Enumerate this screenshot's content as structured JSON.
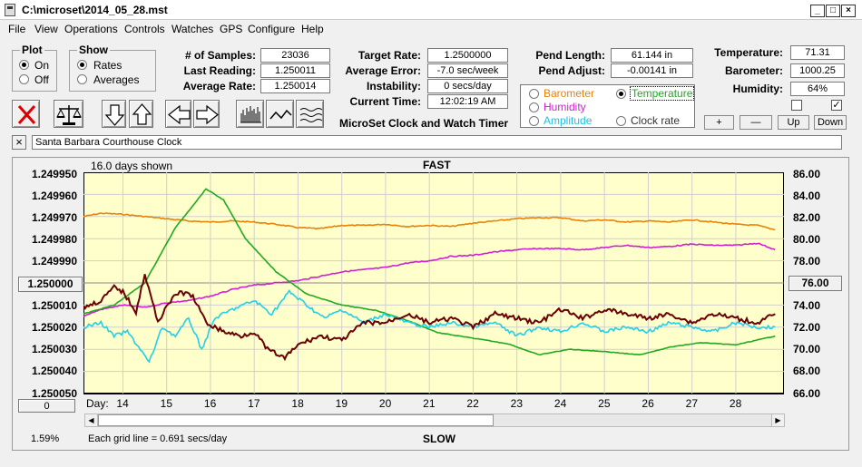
{
  "window": {
    "title": "C:\\microset\\2014_05_28.mst"
  },
  "menu": [
    "File",
    "View",
    "Operations",
    "Controls",
    "Watches",
    "GPS",
    "Configure",
    "Help"
  ],
  "plot_group": {
    "title": "Plot",
    "on": "On",
    "off": "Off",
    "selected": "On"
  },
  "show_group": {
    "title": "Show",
    "rates": "Rates",
    "averages": "Averages",
    "selected": "Rates"
  },
  "stats": {
    "samples_label": "# of Samples:",
    "samples": "23036",
    "last_label": "Last Reading:",
    "last": "1.250011",
    "avg_label": "Average Rate:",
    "avg": "1.250014"
  },
  "targets": {
    "target_label": "Target Rate:",
    "target": "1.2500000",
    "avgerr_label": "Average Error:",
    "avgerr": "-7.0 sec/week",
    "instab_label": "Instability:",
    "instab": "0 secs/day",
    "time_label": "Current Time:",
    "time": "12:02:19 AM"
  },
  "app_caption": "MicroSet Clock and Watch Timer",
  "pend": {
    "length_label": "Pend Length:",
    "length": "61.144 in",
    "adjust_label": "Pend Adjust:",
    "adjust": "-0.00141 in"
  },
  "env": {
    "temp_label": "Temperature:",
    "temp": "71.31",
    "baro_label": "Barometer:",
    "baro": "1000.25",
    "hum_label": "Humidity:",
    "hum": "64%"
  },
  "legend": {
    "barometer": "Barometer",
    "temperature": "Temperature",
    "humidity": "Humidity",
    "amplitude": "Amplitude",
    "clockrate": "Clock rate",
    "selected": "Temperature"
  },
  "scale_buttons": {
    "plus": "+",
    "minus": "—",
    "up": "Up",
    "down": "Down"
  },
  "clock_name": "Santa Barbara Courthouse Clock",
  "chart": {
    "days_shown": "16.0 days shown",
    "top_label": "FAST",
    "bottom_label": "SLOW",
    "center_left": "1.250000",
    "center_right": "76.00",
    "offset_value": "0",
    "percent": "1.59%",
    "grid_note": "Each grid line = 0.691 secs/day",
    "day_label": "Day:"
  },
  "colors": {
    "plot_bg": "#ffffcc",
    "clock_rate": "#6b0000",
    "temperature": "#1faa1f",
    "barometer": "#e8820a",
    "humidity": "#d020d0",
    "amplitude": "#20d0e8"
  },
  "chart_data": {
    "type": "line",
    "title": "",
    "y_left_ticks": [
      "1.249950",
      "1.249960",
      "1.249970",
      "1.249980",
      "1.249990",
      "1.250000",
      "1.250010",
      "1.250020",
      "1.250030",
      "1.250040",
      "1.250050"
    ],
    "y_right_ticks": [
      "86.00",
      "84.00",
      "82.00",
      "80.00",
      "78.00",
      "76.00",
      "74.00",
      "72.00",
      "70.00",
      "68.00",
      "66.00"
    ],
    "x_ticks": [
      "14",
      "15",
      "16",
      "17",
      "18",
      "19",
      "20",
      "21",
      "22",
      "23",
      "24",
      "25",
      "26",
      "27",
      "28"
    ],
    "xlim": [
      13.1,
      29.1
    ],
    "ylim_left": [
      1.24995,
      1.25005
    ],
    "ylim_right": [
      66,
      86
    ],
    "series": [
      {
        "name": "Clock rate",
        "axis": "left",
        "x": [
          13.1,
          13.5,
          13.8,
          14.0,
          14.3,
          14.5,
          14.8,
          15.0,
          15.3,
          15.6,
          15.9,
          16.3,
          16.7,
          17.0,
          17.3,
          17.7,
          18.0,
          18.5,
          19.0,
          19.5,
          20.0,
          20.5,
          21.0,
          21.5,
          22.0,
          22.5,
          23.0,
          23.5,
          24.0,
          24.5,
          25.0,
          25.5,
          26.0,
          26.5,
          27.0,
          27.5,
          28.0,
          28.5,
          28.9
        ],
        "y": [
          1.250011,
          1.250008,
          1.250002,
          1.250004,
          1.250013,
          1.249996,
          1.250018,
          1.25001,
          1.250004,
          1.250006,
          1.250018,
          1.250022,
          1.250024,
          1.250022,
          1.25003,
          1.250034,
          1.250028,
          1.250024,
          1.250026,
          1.250018,
          1.250018,
          1.250014,
          1.250018,
          1.250016,
          1.25002,
          1.250014,
          1.250016,
          1.250018,
          1.250012,
          1.250016,
          1.250012,
          1.250014,
          1.250016,
          1.250014,
          1.250018,
          1.250014,
          1.250016,
          1.250018,
          1.250014
        ]
      },
      {
        "name": "Temperature",
        "axis": "right",
        "x": [
          13.1,
          13.8,
          14.5,
          15.2,
          15.6,
          15.9,
          16.3,
          16.8,
          17.5,
          18.2,
          19.0,
          19.8,
          20.5,
          21.2,
          22.0,
          22.8,
          23.5,
          24.2,
          25.0,
          25.8,
          26.5,
          27.2,
          28.0,
          28.9
        ],
        "y": [
          73.2,
          74.0,
          76.0,
          81.0,
          83.0,
          84.5,
          83.5,
          80.0,
          77.0,
          75.0,
          74.0,
          73.5,
          72.6,
          71.5,
          71.0,
          70.5,
          69.5,
          70.0,
          69.8,
          69.5,
          70.2,
          70.6,
          70.4,
          71.2
        ]
      },
      {
        "name": "Barometer",
        "axis": "right",
        "x": [
          13.1,
          13.5,
          14.0,
          14.5,
          15.0,
          15.5,
          16.0,
          16.5,
          17.0,
          17.5,
          18.0,
          18.5,
          19.0,
          19.5,
          20.0,
          20.5,
          21.0,
          21.5,
          22.0,
          22.5,
          23.0,
          23.5,
          24.0,
          24.5,
          25.0,
          25.5,
          26.0,
          26.5,
          27.0,
          27.5,
          28.0,
          28.5,
          28.9
        ],
        "y": [
          82.0,
          82.3,
          82.2,
          82.0,
          81.8,
          81.6,
          81.5,
          81.6,
          81.5,
          81.3,
          81.0,
          80.9,
          81.2,
          81.2,
          81.3,
          81.1,
          81.2,
          81.1,
          81.4,
          81.6,
          81.8,
          81.9,
          81.9,
          81.6,
          81.7,
          81.5,
          81.6,
          81.5,
          81.7,
          81.5,
          81.3,
          81.2,
          80.8
        ]
      },
      {
        "name": "Humidity",
        "axis": "right",
        "x": [
          13.1,
          13.5,
          14.0,
          14.5,
          15.0,
          15.5,
          16.0,
          16.5,
          17.0,
          17.5,
          18.0,
          18.5,
          19.0,
          19.5,
          20.0,
          20.5,
          21.0,
          21.5,
          22.0,
          22.5,
          23.0,
          23.5,
          24.0,
          24.5,
          25.0,
          25.5,
          26.0,
          26.5,
          27.0,
          27.5,
          28.0,
          28.5,
          28.9
        ],
        "y": [
          73.0,
          73.6,
          74.0,
          73.8,
          74.2,
          74.4,
          74.8,
          75.4,
          75.8,
          76.0,
          76.2,
          76.6,
          77.0,
          77.2,
          77.4,
          77.8,
          78.0,
          78.4,
          78.5,
          78.8,
          79.0,
          79.1,
          79.1,
          79.0,
          79.2,
          79.4,
          79.2,
          79.3,
          79.5,
          79.4,
          79.4,
          79.6,
          79.0
        ]
      },
      {
        "name": "Amplitude",
        "axis": "left",
        "x": [
          13.1,
          13.5,
          13.8,
          14.1,
          14.4,
          14.6,
          14.9,
          15.2,
          15.5,
          15.8,
          16.1,
          16.5,
          17.0,
          17.4,
          17.8,
          18.2,
          18.6,
          19.0,
          19.5,
          20.0,
          20.5,
          21.0,
          21.5,
          22.0,
          22.5,
          23.0,
          23.5,
          24.0,
          24.5,
          25.0,
          25.5,
          26.0,
          26.5,
          27.0,
          27.5,
          28.0,
          28.5,
          28.9
        ],
        "y": [
          1.25002,
          1.250018,
          1.250024,
          1.250022,
          1.25003,
          1.250036,
          1.25002,
          1.250024,
          1.250016,
          1.25003,
          1.250016,
          1.250012,
          1.250008,
          1.250014,
          1.250004,
          1.25001,
          1.250016,
          1.250012,
          1.250018,
          1.250014,
          1.250018,
          1.25002,
          1.250018,
          1.25002,
          1.250018,
          1.250024,
          1.25002,
          1.250022,
          1.250018,
          1.250022,
          1.25002,
          1.250022,
          1.250018,
          1.25002,
          1.250022,
          1.250018,
          1.25002,
          1.25002
        ]
      }
    ]
  }
}
